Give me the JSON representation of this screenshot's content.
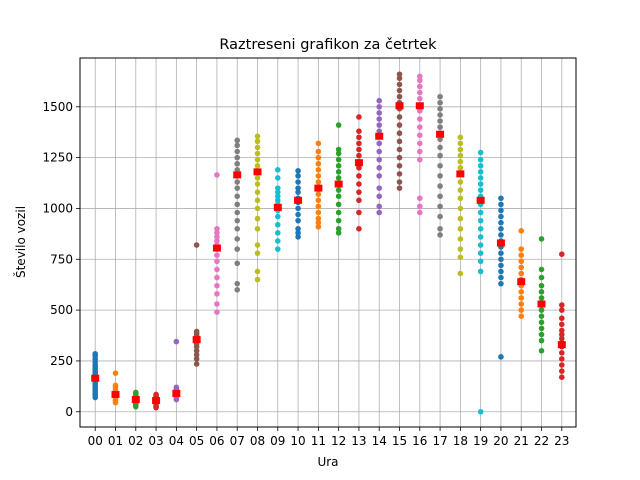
{
  "chart_data": {
    "type": "scatter",
    "title": "Raztreseni grafikon za četrtek",
    "xlabel": "Ura",
    "ylabel": "Število vozil",
    "categories": [
      "00",
      "01",
      "02",
      "03",
      "04",
      "05",
      "06",
      "07",
      "08",
      "09",
      "10",
      "11",
      "12",
      "13",
      "14",
      "15",
      "16",
      "17",
      "18",
      "19",
      "20",
      "21",
      "22",
      "23"
    ],
    "ylim": [
      -75,
      1740
    ],
    "yticks": [
      0,
      250,
      500,
      750,
      1000,
      1250,
      1500
    ],
    "grid": true,
    "median_color": "#ff0000",
    "palette": [
      "#1f77b4",
      "#ff7f0e",
      "#2ca02c",
      "#d62728",
      "#9467bd",
      "#8c564b",
      "#e377c2",
      "#7f7f7f",
      "#bcbd22",
      "#17becf"
    ],
    "series": [
      {
        "hour": "00",
        "median": 165,
        "values": [
          70,
          80,
          90,
          100,
          110,
          120,
          130,
          140,
          150,
          160,
          165,
          170,
          175,
          180,
          190,
          200,
          210,
          220,
          230,
          245,
          260,
          275,
          285
        ]
      },
      {
        "hour": "01",
        "median": 85,
        "values": [
          45,
          55,
          60,
          70,
          75,
          80,
          85,
          90,
          95,
          100,
          110,
          120,
          130,
          190
        ]
      },
      {
        "hour": "02",
        "median": 60,
        "values": [
          25,
          35,
          40,
          45,
          50,
          55,
          60,
          65,
          70,
          75,
          80,
          90,
          95
        ]
      },
      {
        "hour": "03",
        "median": 55,
        "values": [
          20,
          25,
          30,
          40,
          45,
          50,
          55,
          60,
          65,
          70,
          75,
          80,
          85
        ]
      },
      {
        "hour": "04",
        "median": 90,
        "values": [
          60,
          70,
          75,
          80,
          85,
          90,
          95,
          100,
          110,
          120,
          345
        ]
      },
      {
        "hour": "05",
        "median": 355,
        "values": [
          235,
          260,
          280,
          300,
          320,
          335,
          345,
          355,
          365,
          375,
          385,
          395,
          820
        ]
      },
      {
        "hour": "06",
        "median": 805,
        "values": [
          490,
          530,
          580,
          620,
          660,
          700,
          740,
          770,
          800,
          820,
          840,
          860,
          880,
          900,
          1165
        ]
      },
      {
        "hour": "07",
        "median": 1165,
        "values": [
          600,
          630,
          730,
          800,
          850,
          900,
          940,
          980,
          1020,
          1060,
          1100,
          1130,
          1160,
          1190,
          1220,
          1250,
          1280,
          1310,
          1335
        ]
      },
      {
        "hour": "08",
        "median": 1180,
        "values": [
          650,
          690,
          780,
          820,
          900,
          950,
          1000,
          1040,
          1080,
          1120,
          1150,
          1180,
          1210,
          1240,
          1270,
          1300,
          1330,
          1355
        ]
      },
      {
        "hour": "09",
        "median": 1005,
        "values": [
          800,
          840,
          880,
          920,
          960,
          990,
          1005,
          1020,
          1040,
          1060,
          1080,
          1100,
          1150,
          1190
        ]
      },
      {
        "hour": "10",
        "median": 1040,
        "values": [
          860,
          880,
          900,
          940,
          970,
          1000,
          1030,
          1050,
          1080,
          1100,
          1130,
          1160,
          1185
        ]
      },
      {
        "hour": "11",
        "median": 1100,
        "values": [
          910,
          930,
          950,
          980,
          1010,
          1040,
          1070,
          1100,
          1130,
          1160,
          1190,
          1220,
          1250,
          1280,
          1320
        ]
      },
      {
        "hour": "12",
        "median": 1120,
        "values": [
          880,
          900,
          940,
          980,
          1020,
          1060,
          1090,
          1120,
          1150,
          1180,
          1210,
          1240,
          1270,
          1290,
          1410
        ]
      },
      {
        "hour": "13",
        "median": 1225,
        "values": [
          900,
          980,
          1040,
          1080,
          1120,
          1160,
          1200,
          1230,
          1260,
          1290,
          1320,
          1350,
          1380,
          1450
        ]
      },
      {
        "hour": "14",
        "median": 1355,
        "values": [
          980,
          1010,
          1060,
          1100,
          1160,
          1200,
          1240,
          1280,
          1320,
          1355,
          1380,
          1410,
          1440,
          1470,
          1500,
          1530
        ]
      },
      {
        "hour": "15",
        "median": 1505,
        "values": [
          1100,
          1130,
          1170,
          1210,
          1250,
          1290,
          1330,
          1370,
          1410,
          1450,
          1490,
          1520,
          1550,
          1580,
          1610,
          1640,
          1660
        ]
      },
      {
        "hour": "16",
        "median": 1505,
        "values": [
          980,
          1010,
          1050,
          1240,
          1280,
          1320,
          1360,
          1400,
          1440,
          1480,
          1510,
          1540,
          1570,
          1600,
          1630,
          1650
        ]
      },
      {
        "hour": "17",
        "median": 1365,
        "values": [
          870,
          900,
          960,
          1010,
          1060,
          1110,
          1160,
          1210,
          1260,
          1300,
          1340,
          1370,
          1400,
          1430,
          1460,
          1490,
          1520,
          1550
        ]
      },
      {
        "hour": "18",
        "median": 1170,
        "values": [
          680,
          760,
          800,
          850,
          900,
          950,
          1000,
          1050,
          1090,
          1130,
          1170,
          1200,
          1230,
          1260,
          1290,
          1320,
          1350
        ]
      },
      {
        "hour": "19",
        "median": 1040,
        "values": [
          0,
          690,
          740,
          780,
          820,
          860,
          900,
          940,
          980,
          1020,
          1040,
          1060,
          1090,
          1120,
          1150,
          1180,
          1210,
          1240,
          1275
        ]
      },
      {
        "hour": "20",
        "median": 830,
        "values": [
          270,
          630,
          660,
          690,
          720,
          750,
          780,
          810,
          840,
          870,
          900,
          930,
          960,
          990,
          1020,
          1050
        ]
      },
      {
        "hour": "21",
        "median": 640,
        "values": [
          470,
          500,
          530,
          560,
          590,
          620,
          650,
          680,
          710,
          740,
          770,
          800,
          890
        ]
      },
      {
        "hour": "22",
        "median": 530,
        "values": [
          300,
          350,
          380,
          410,
          440,
          470,
          500,
          530,
          560,
          590,
          620,
          660,
          700,
          850
        ]
      },
      {
        "hour": "23",
        "median": 330,
        "values": [
          170,
          200,
          230,
          260,
          290,
          320,
          340,
          360,
          380,
          400,
          430,
          460,
          500,
          525,
          775
        ]
      }
    ]
  }
}
